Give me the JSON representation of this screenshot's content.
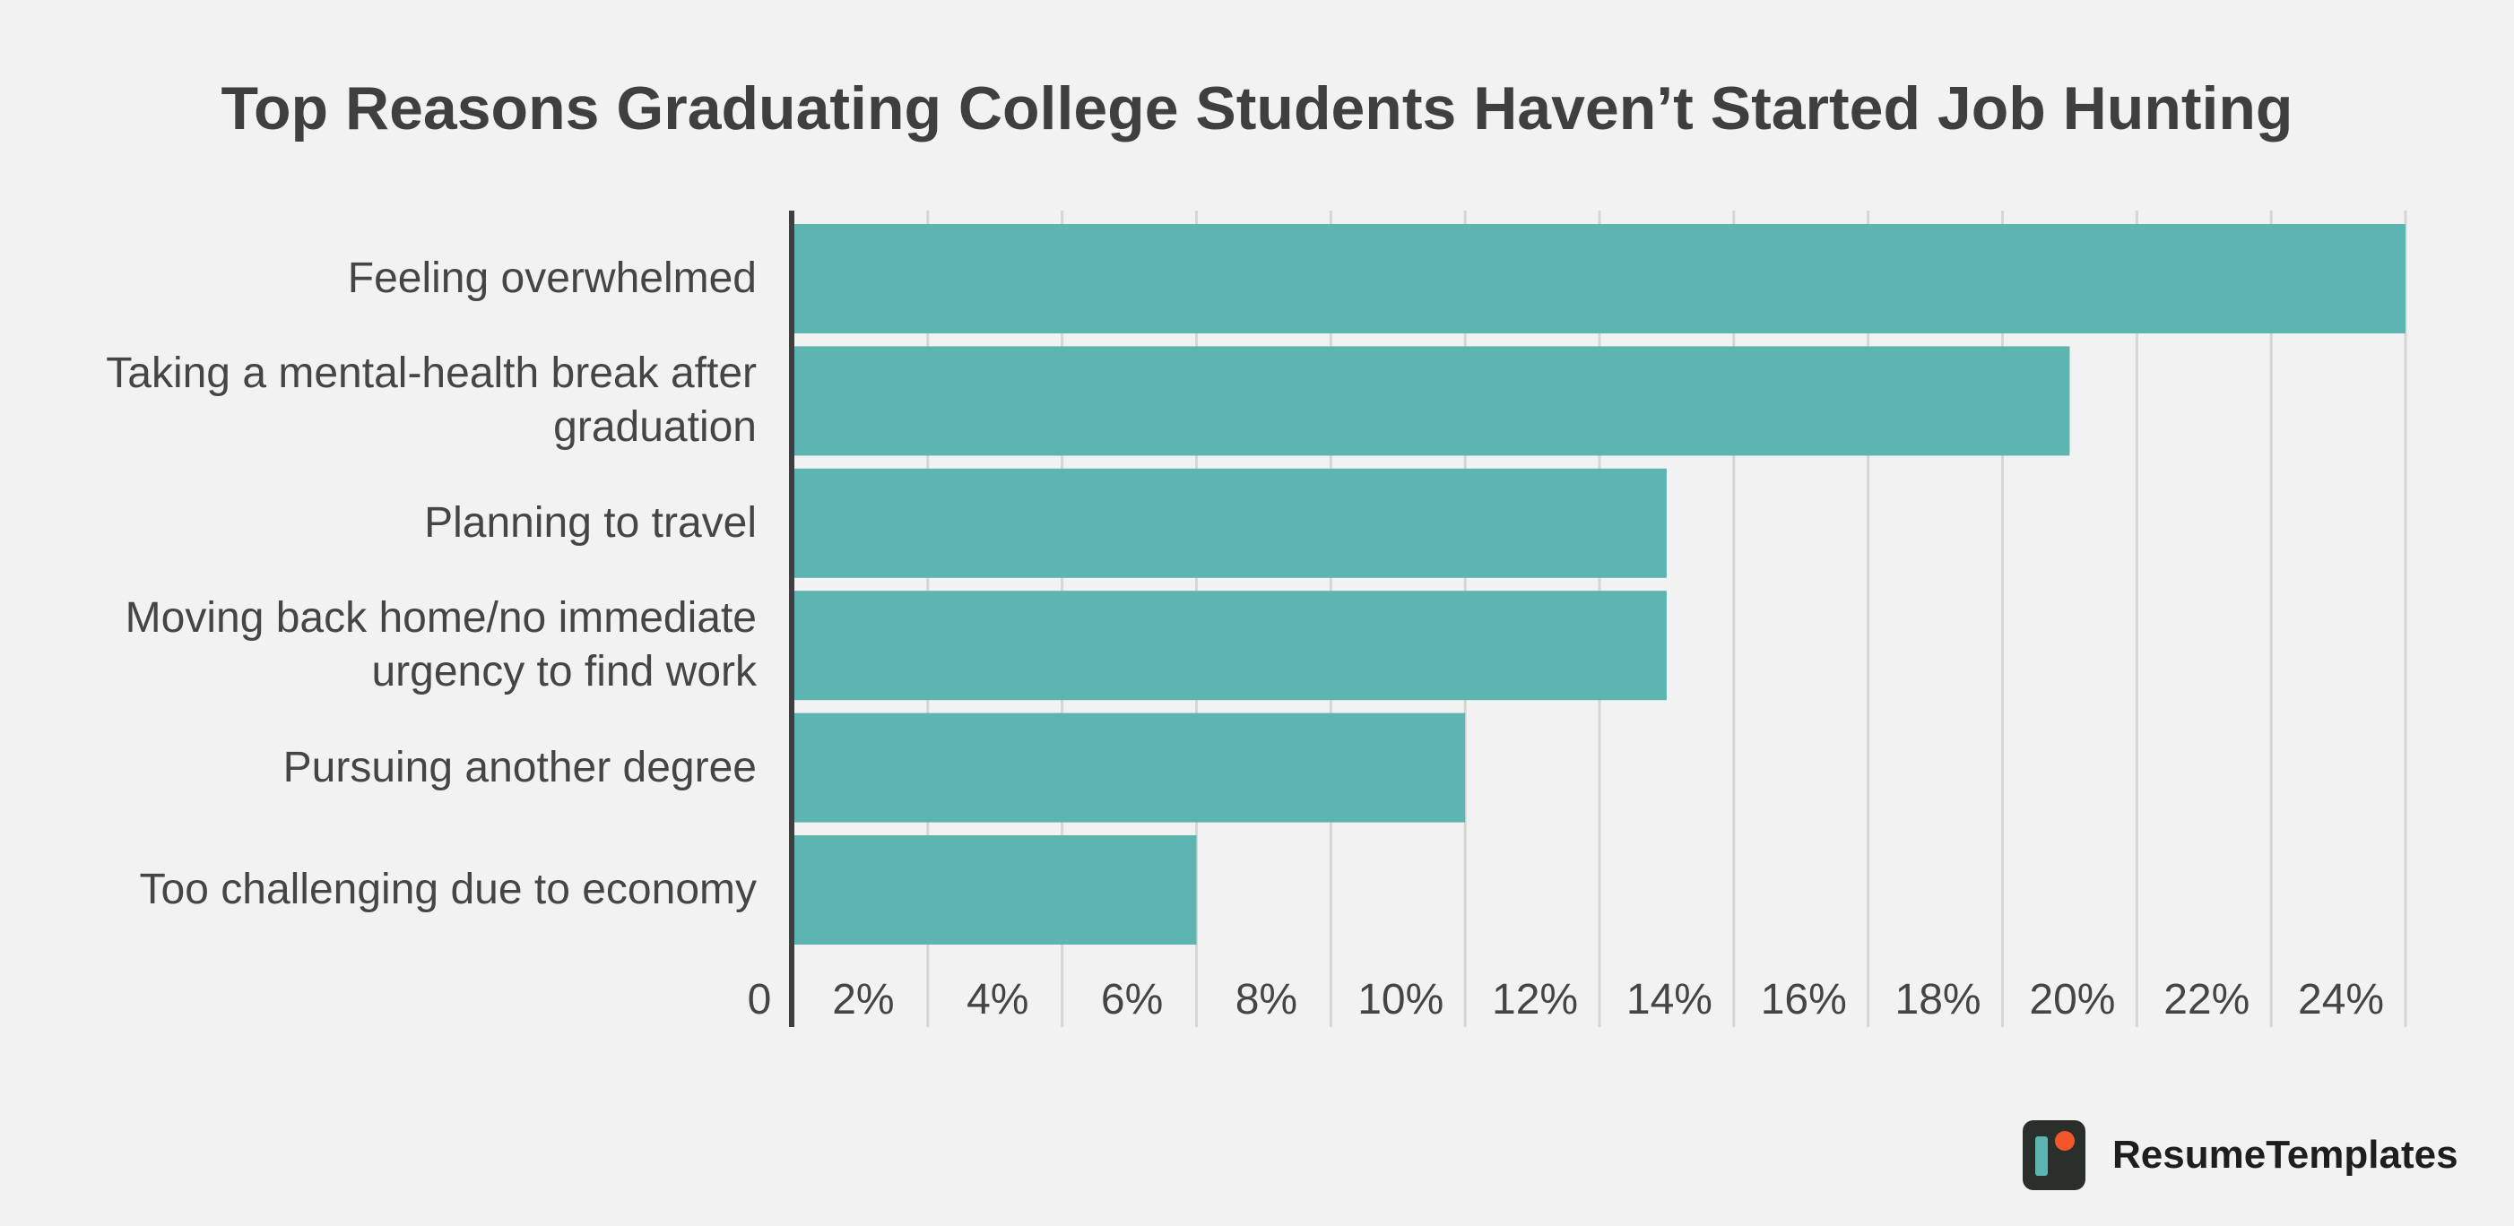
{
  "title": "Top Reasons Graduating College Students Haven’t Started Job Hunting",
  "brand": {
    "name": "ResumeTemplates",
    "icon": "resume-templates-logo-icon"
  },
  "colors": {
    "bar": "#5cb5b1",
    "axis": "#3f3f3f",
    "grid": "#d6d6d6",
    "background": "#f2f2f2"
  },
  "chart_data": {
    "type": "bar",
    "orientation": "horizontal",
    "title": "Top Reasons Graduating College Students Haven’t Started Job Hunting",
    "categories": [
      "Feeling overwhelmed",
      "Taking a mental-health break after graduation",
      "Planning to travel",
      "Moving back home/no immediate urgency to find work",
      "Pursuing another degree",
      "Too challenging due to economy"
    ],
    "category_lines": [
      [
        "Feeling overwhelmed"
      ],
      [
        "Taking a mental-health break after",
        "graduation"
      ],
      [
        "Planning to travel"
      ],
      [
        "Moving back home/no immediate",
        "urgency to find work"
      ],
      [
        "Pursuing another degree"
      ],
      [
        "Too challenging due to economy"
      ]
    ],
    "values": [
      24,
      19,
      13,
      13,
      10,
      6
    ],
    "unit": "%",
    "xlim": [
      0,
      24
    ],
    "xticks": [
      0,
      2,
      4,
      6,
      8,
      10,
      12,
      14,
      16,
      18,
      20,
      22,
      24
    ],
    "xtick_labels": [
      "0",
      "2%",
      "4%",
      "6%",
      "8%",
      "10%",
      "12%",
      "14%",
      "16%",
      "18%",
      "20%",
      "22%",
      "24%"
    ],
    "xlabel": "",
    "ylabel": "",
    "grid": true,
    "legend": false
  }
}
